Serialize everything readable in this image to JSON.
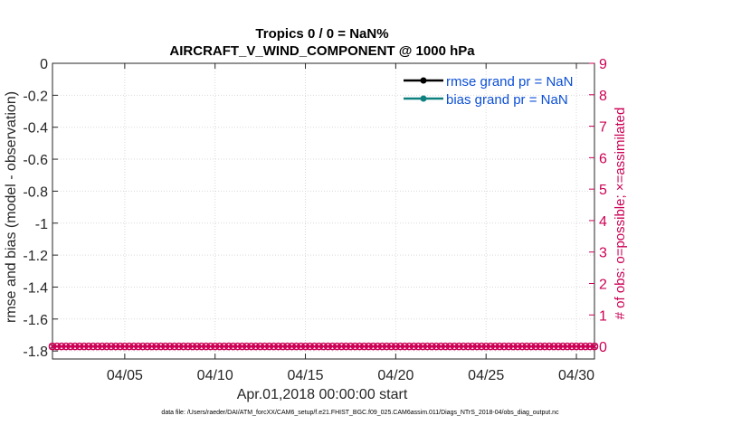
{
  "chart_data": {
    "type": "line",
    "title": "Tropics 0 / 0 = NaN%",
    "subtitle": "AIRCRAFT_V_WIND_COMPONENT @ 1000 hPa",
    "xlabel": "Apr.01,2018 00:00:00 start",
    "ylabel": "rmse and bias (model - observation)",
    "ylabel_right": "# of obs: o=possible; ×=assimilated",
    "xlim": [
      1,
      31
    ],
    "x_ticks": [
      5,
      10,
      15,
      20,
      25,
      30
    ],
    "x_tick_labels": [
      "04/05",
      "04/10",
      "04/15",
      "04/20",
      "04/25",
      "04/30"
    ],
    "ylim": [
      -1.85,
      0
    ],
    "y_ticks": [
      0,
      -0.2,
      -0.4,
      -0.6,
      -0.8,
      -1,
      -1.2,
      -1.4,
      -1.6,
      -1.8
    ],
    "y_tick_labels": [
      "0",
      "-0.2",
      "-0.4",
      "-0.6",
      "-0.8",
      "-1",
      "-1.2",
      "-1.4",
      "-1.6",
      "-1.8"
    ],
    "ylim_right": [
      -0.4,
      9
    ],
    "y_ticks_right": [
      0,
      1,
      2,
      3,
      4,
      5,
      6,
      7,
      8,
      9
    ],
    "y_tick_labels_right": [
      "0",
      "1",
      "2",
      "3",
      "4",
      "5",
      "6",
      "7",
      "8",
      "9"
    ],
    "grid": true,
    "legend_position": "top-right",
    "series": [
      {
        "name": "rmse grand pr = NaN",
        "color": "#000000",
        "marker": "circle",
        "values": []
      },
      {
        "name": "bias grand pr = NaN",
        "color": "#0f8080",
        "marker": "circle",
        "values": []
      },
      {
        "name": "",
        "color": "#cc0055",
        "marker": "circle",
        "axis": "right",
        "x_start": 1,
        "x_end": 31,
        "x_step": 0.25,
        "value": 0
      },
      {
        "name": "",
        "color": "#cc0055",
        "marker": "x",
        "axis": "right",
        "x_start": 1,
        "x_end": 31,
        "x_step": 0.25,
        "value": 0
      }
    ],
    "footnote": "data file: /Users/raeder/DAI/ATM_forcXX/CAM6_setup/f.e21.FHIST_BGC.f09_025.CAM6assim.011/Diags_NTrS_2018-04/obs_diag_output.nc"
  }
}
